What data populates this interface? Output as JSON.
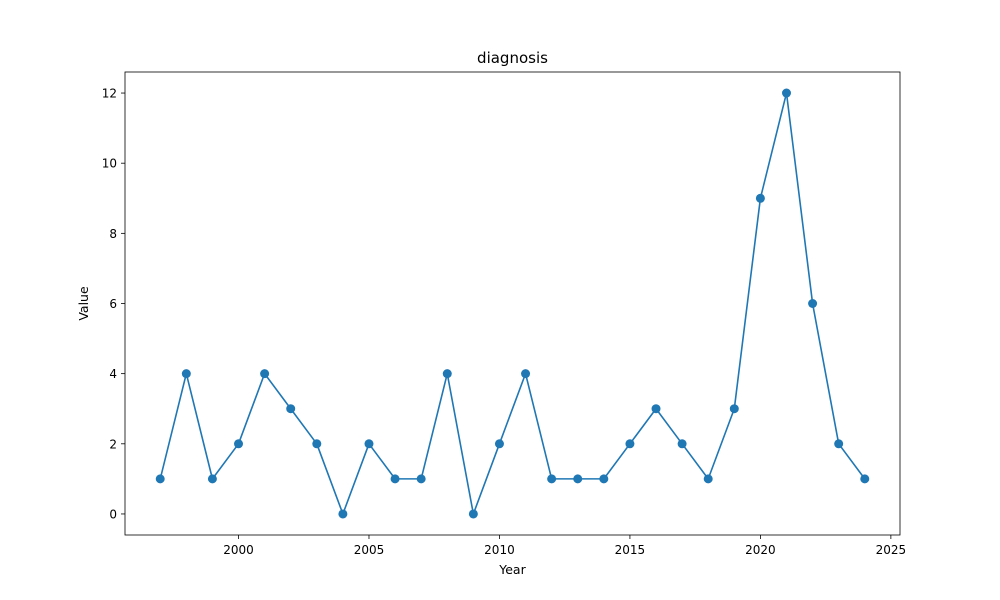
{
  "chart_data": {
    "type": "line",
    "title": "diagnosis",
    "xlabel": "Year",
    "ylabel": "Value",
    "xlim": [
      1995.65,
      2025.35
    ],
    "ylim": [
      -0.6,
      12.6
    ],
    "x_ticks": [
      2000,
      2005,
      2010,
      2015,
      2020,
      2025
    ],
    "y_ticks": [
      0,
      2,
      4,
      6,
      8,
      10,
      12
    ],
    "grid": false,
    "legend": "none",
    "series": [
      {
        "color": "#1f77b4",
        "marker": "circle",
        "x": [
          1997,
          1998,
          1999,
          2000,
          2001,
          2002,
          2003,
          2004,
          2005,
          2006,
          2007,
          2008,
          2009,
          2010,
          2011,
          2012,
          2013,
          2014,
          2015,
          2016,
          2017,
          2018,
          2019,
          2020,
          2021,
          2022,
          2023,
          2024
        ],
        "y": [
          1,
          4,
          1,
          2,
          4,
          3,
          2,
          0,
          2,
          1,
          1,
          4,
          0,
          2,
          4,
          1,
          1,
          1,
          2,
          3,
          2,
          1,
          3,
          9,
          12,
          6,
          2,
          1
        ]
      }
    ]
  }
}
